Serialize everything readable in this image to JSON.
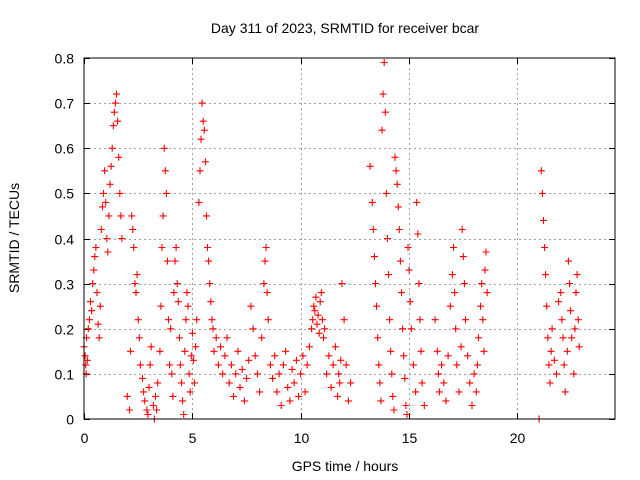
{
  "chart_data": {
    "type": "scatter",
    "title": "Day 311 of 2023, SRMTID for receiver bcar",
    "xlabel": "GPS time / hours",
    "ylabel": "SRMTID / TECUs",
    "xlim": [
      0,
      24.5
    ],
    "ylim": [
      0,
      0.8
    ],
    "xticks": [
      0,
      5,
      10,
      15,
      20
    ],
    "yticks": [
      0,
      0.1,
      0.2,
      0.3,
      0.4,
      0.5,
      0.6,
      0.7,
      0.8
    ],
    "xtick_labels": [
      "0",
      "5",
      "10",
      "15",
      "20"
    ],
    "ytick_labels": [
      "0",
      "0.1",
      "0.2",
      "0.3",
      "0.4",
      "0.5",
      "0.6",
      "0.7",
      "0.8"
    ],
    "grid": true,
    "marker": "+",
    "color": "#ff0000",
    "series": [
      {
        "name": "SRMTID",
        "points": [
          [
            0.0,
            0.16
          ],
          [
            0.05,
            0.14
          ],
          [
            0.08,
            0.12
          ],
          [
            0.1,
            0.1
          ],
          [
            0.12,
            0.18
          ],
          [
            0.15,
            0.13
          ],
          [
            0.2,
            0.2
          ],
          [
            0.25,
            0.22
          ],
          [
            0.3,
            0.26
          ],
          [
            0.35,
            0.24
          ],
          [
            0.4,
            0.3
          ],
          [
            0.45,
            0.33
          ],
          [
            0.5,
            0.36
          ],
          [
            0.55,
            0.38
          ],
          [
            0.6,
            0.28
          ],
          [
            0.65,
            0.21
          ],
          [
            0.7,
            0.18
          ],
          [
            0.75,
            0.25
          ],
          [
            0.8,
            0.42
          ],
          [
            0.85,
            0.47
          ],
          [
            0.9,
            0.5
          ],
          [
            0.95,
            0.55
          ],
          [
            1.0,
            0.48
          ],
          [
            1.05,
            0.4
          ],
          [
            1.1,
            0.37
          ],
          [
            1.15,
            0.45
          ],
          [
            1.2,
            0.52
          ],
          [
            1.25,
            0.56
          ],
          [
            1.3,
            0.6
          ],
          [
            1.35,
            0.65
          ],
          [
            1.4,
            0.68
          ],
          [
            1.45,
            0.7
          ],
          [
            1.5,
            0.72
          ],
          [
            1.55,
            0.66
          ],
          [
            1.6,
            0.58
          ],
          [
            1.65,
            0.5
          ],
          [
            1.7,
            0.45
          ],
          [
            1.75,
            0.4
          ],
          [
            2.0,
            0.05
          ],
          [
            2.1,
            0.02
          ],
          [
            2.15,
            0.15
          ],
          [
            2.2,
            0.45
          ],
          [
            2.25,
            0.42
          ],
          [
            2.3,
            0.38
          ],
          [
            2.35,
            0.3
          ],
          [
            2.4,
            0.28
          ],
          [
            2.45,
            0.32
          ],
          [
            2.5,
            0.22
          ],
          [
            2.55,
            0.18
          ],
          [
            2.6,
            0.12
          ],
          [
            2.7,
            0.09
          ],
          [
            2.75,
            0.06
          ],
          [
            2.8,
            0.04
          ],
          [
            2.9,
            0.02
          ],
          [
            2.95,
            0.01
          ],
          [
            3.0,
            0.07
          ],
          [
            3.05,
            0.12
          ],
          [
            3.1,
            0.16
          ],
          [
            3.2,
            0.03
          ],
          [
            3.25,
            0.0
          ],
          [
            3.3,
            0.05
          ],
          [
            3.35,
            0.02
          ],
          [
            3.4,
            0.08
          ],
          [
            3.5,
            0.15
          ],
          [
            3.55,
            0.25
          ],
          [
            3.6,
            0.38
          ],
          [
            3.65,
            0.45
          ],
          [
            3.7,
            0.6
          ],
          [
            3.75,
            0.55
          ],
          [
            3.8,
            0.5
          ],
          [
            3.85,
            0.35
          ],
          [
            3.9,
            0.22
          ],
          [
            3.95,
            0.12
          ],
          [
            4.0,
            0.2
          ],
          [
            4.05,
            0.1
          ],
          [
            4.1,
            0.05
          ],
          [
            4.15,
            0.28
          ],
          [
            4.2,
            0.35
          ],
          [
            4.25,
            0.38
          ],
          [
            4.3,
            0.3
          ],
          [
            4.35,
            0.26
          ],
          [
            4.4,
            0.18
          ],
          [
            4.45,
            0.12
          ],
          [
            4.5,
            0.08
          ],
          [
            4.55,
            0.04
          ],
          [
            4.6,
            0.01
          ],
          [
            4.65,
            0.15
          ],
          [
            4.7,
            0.22
          ],
          [
            4.75,
            0.28
          ],
          [
            4.8,
            0.25
          ],
          [
            4.85,
            0.1
          ],
          [
            4.9,
            0.06
          ],
          [
            4.95,
            0.14
          ],
          [
            5.0,
            0.19
          ],
          [
            5.05,
            0.13
          ],
          [
            5.1,
            0.08
          ],
          [
            5.15,
            0.16
          ],
          [
            5.2,
            0.22
          ],
          [
            5.3,
            0.48
          ],
          [
            5.35,
            0.55
          ],
          [
            5.4,
            0.62
          ],
          [
            5.45,
            0.7
          ],
          [
            5.5,
            0.66
          ],
          [
            5.55,
            0.64
          ],
          [
            5.6,
            0.57
          ],
          [
            5.65,
            0.45
          ],
          [
            5.7,
            0.38
          ],
          [
            5.75,
            0.35
          ],
          [
            5.8,
            0.3
          ],
          [
            5.85,
            0.26
          ],
          [
            5.9,
            0.22
          ],
          [
            5.95,
            0.2
          ],
          [
            6.0,
            0.15
          ],
          [
            6.1,
            0.18
          ],
          [
            6.2,
            0.12
          ],
          [
            6.3,
            0.16
          ],
          [
            6.4,
            0.1
          ],
          [
            6.5,
            0.14
          ],
          [
            6.6,
            0.18
          ],
          [
            6.7,
            0.08
          ],
          [
            6.8,
            0.12
          ],
          [
            6.9,
            0.05
          ],
          [
            7.0,
            0.1
          ],
          [
            7.1,
            0.15
          ],
          [
            7.2,
            0.07
          ],
          [
            7.3,
            0.11
          ],
          [
            7.4,
            0.04
          ],
          [
            7.5,
            0.09
          ],
          [
            7.6,
            0.13
          ],
          [
            7.7,
            0.25
          ],
          [
            7.8,
            0.2
          ],
          [
            7.9,
            0.14
          ],
          [
            8.0,
            0.1
          ],
          [
            8.1,
            0.06
          ],
          [
            8.2,
            0.18
          ],
          [
            8.3,
            0.3
          ],
          [
            8.35,
            0.35
          ],
          [
            8.4,
            0.38
          ],
          [
            8.45,
            0.28
          ],
          [
            8.5,
            0.22
          ],
          [
            8.6,
            0.12
          ],
          [
            8.7,
            0.09
          ],
          [
            8.8,
            0.14
          ],
          [
            8.9,
            0.06
          ],
          [
            9.0,
            0.1
          ],
          [
            9.1,
            0.03
          ],
          [
            9.2,
            0.12
          ],
          [
            9.3,
            0.15
          ],
          [
            9.4,
            0.07
          ],
          [
            9.5,
            0.04
          ],
          [
            9.6,
            0.11
          ],
          [
            9.7,
            0.08
          ],
          [
            9.8,
            0.13
          ],
          [
            9.9,
            0.05
          ],
          [
            10.0,
            0.1
          ],
          [
            10.1,
            0.14
          ],
          [
            10.2,
            0.06
          ],
          [
            10.3,
            0.12
          ],
          [
            10.4,
            0.16
          ],
          [
            10.5,
            0.2
          ],
          [
            10.55,
            0.22
          ],
          [
            10.6,
            0.25
          ],
          [
            10.65,
            0.24
          ],
          [
            10.7,
            0.27
          ],
          [
            10.75,
            0.21
          ],
          [
            10.8,
            0.23
          ],
          [
            10.85,
            0.19
          ],
          [
            10.9,
            0.26
          ],
          [
            10.95,
            0.28
          ],
          [
            11.0,
            0.22
          ],
          [
            11.05,
            0.18
          ],
          [
            11.1,
            0.2
          ],
          [
            11.2,
            0.1
          ],
          [
            11.3,
            0.14
          ],
          [
            11.4,
            0.07
          ],
          [
            11.5,
            0.12
          ],
          [
            11.6,
            0.16
          ],
          [
            11.7,
            0.05
          ],
          [
            11.75,
            0.1
          ],
          [
            11.8,
            0.08
          ],
          [
            11.85,
            0.13
          ],
          [
            11.9,
            0.3
          ],
          [
            12.0,
            0.22
          ],
          [
            12.1,
            0.12
          ],
          [
            12.2,
            0.04
          ],
          [
            12.3,
            0.08
          ],
          [
            13.2,
            0.56
          ],
          [
            13.3,
            0.48
          ],
          [
            13.35,
            0.42
          ],
          [
            13.4,
            0.36
          ],
          [
            13.45,
            0.3
          ],
          [
            13.5,
            0.25
          ],
          [
            13.55,
            0.18
          ],
          [
            13.6,
            0.12
          ],
          [
            13.65,
            0.08
          ],
          [
            13.7,
            0.04
          ],
          [
            13.75,
            0.64
          ],
          [
            13.8,
            0.72
          ],
          [
            13.85,
            0.79
          ],
          [
            13.9,
            0.68
          ],
          [
            13.95,
            0.5
          ],
          [
            14.0,
            0.4
          ],
          [
            14.05,
            0.32
          ],
          [
            14.1,
            0.22
          ],
          [
            14.15,
            0.15
          ],
          [
            14.2,
            0.1
          ],
          [
            14.25,
            0.05
          ],
          [
            14.3,
            0.02
          ],
          [
            14.35,
            0.58
          ],
          [
            14.4,
            0.55
          ],
          [
            14.45,
            0.52
          ],
          [
            14.5,
            0.47
          ],
          [
            14.55,
            0.42
          ],
          [
            14.6,
            0.35
          ],
          [
            14.65,
            0.28
          ],
          [
            14.7,
            0.2
          ],
          [
            14.75,
            0.14
          ],
          [
            14.8,
            0.09
          ],
          [
            14.85,
            0.03
          ],
          [
            14.9,
            0.01
          ],
          [
            14.95,
            0.38
          ],
          [
            15.0,
            0.33
          ],
          [
            15.05,
            0.26
          ],
          [
            15.1,
            0.2
          ],
          [
            15.2,
            0.12
          ],
          [
            15.3,
            0.06
          ],
          [
            15.35,
            0.48
          ],
          [
            15.4,
            0.41
          ],
          [
            15.45,
            0.3
          ],
          [
            15.5,
            0.22
          ],
          [
            15.55,
            0.15
          ],
          [
            15.6,
            0.08
          ],
          [
            15.7,
            0.03
          ],
          [
            16.2,
            0.22
          ],
          [
            16.3,
            0.15
          ],
          [
            16.35,
            0.1
          ],
          [
            16.4,
            0.06
          ],
          [
            16.5,
            0.12
          ],
          [
            16.6,
            0.08
          ],
          [
            16.7,
            0.04
          ],
          [
            16.8,
            0.14
          ],
          [
            16.9,
            0.25
          ],
          [
            17.0,
            0.32
          ],
          [
            17.05,
            0.38
          ],
          [
            17.1,
            0.28
          ],
          [
            17.15,
            0.2
          ],
          [
            17.2,
            0.12
          ],
          [
            17.3,
            0.06
          ],
          [
            17.4,
            0.16
          ],
          [
            17.45,
            0.42
          ],
          [
            17.5,
            0.36
          ],
          [
            17.55,
            0.3
          ],
          [
            17.6,
            0.22
          ],
          [
            17.7,
            0.14
          ],
          [
            17.8,
            0.08
          ],
          [
            17.9,
            0.03
          ],
          [
            18.0,
            0.1
          ],
          [
            18.1,
            0.06
          ],
          [
            18.15,
            0.12
          ],
          [
            18.2,
            0.18
          ],
          [
            18.3,
            0.25
          ],
          [
            18.35,
            0.3
          ],
          [
            18.4,
            0.22
          ],
          [
            18.45,
            0.15
          ],
          [
            18.5,
            0.33
          ],
          [
            18.55,
            0.37
          ],
          [
            18.6,
            0.28
          ],
          [
            21.0,
            0.0
          ],
          [
            21.1,
            0.55
          ],
          [
            21.15,
            0.5
          ],
          [
            21.2,
            0.44
          ],
          [
            21.25,
            0.38
          ],
          [
            21.3,
            0.32
          ],
          [
            21.35,
            0.25
          ],
          [
            21.4,
            0.18
          ],
          [
            21.45,
            0.12
          ],
          [
            21.5,
            0.08
          ],
          [
            21.55,
            0.15
          ],
          [
            21.6,
            0.2
          ],
          [
            21.7,
            0.13
          ],
          [
            21.8,
            0.1
          ],
          [
            21.9,
            0.26
          ],
          [
            22.0,
            0.28
          ],
          [
            22.05,
            0.22
          ],
          [
            22.1,
            0.18
          ],
          [
            22.15,
            0.12
          ],
          [
            22.2,
            0.06
          ],
          [
            22.3,
            0.15
          ],
          [
            22.35,
            0.35
          ],
          [
            22.4,
            0.3
          ],
          [
            22.45,
            0.24
          ],
          [
            22.5,
            0.18
          ],
          [
            22.6,
            0.1
          ],
          [
            22.65,
            0.2
          ],
          [
            22.7,
            0.28
          ],
          [
            22.75,
            0.32
          ],
          [
            22.8,
            0.22
          ],
          [
            22.85,
            0.16
          ]
        ]
      }
    ]
  }
}
